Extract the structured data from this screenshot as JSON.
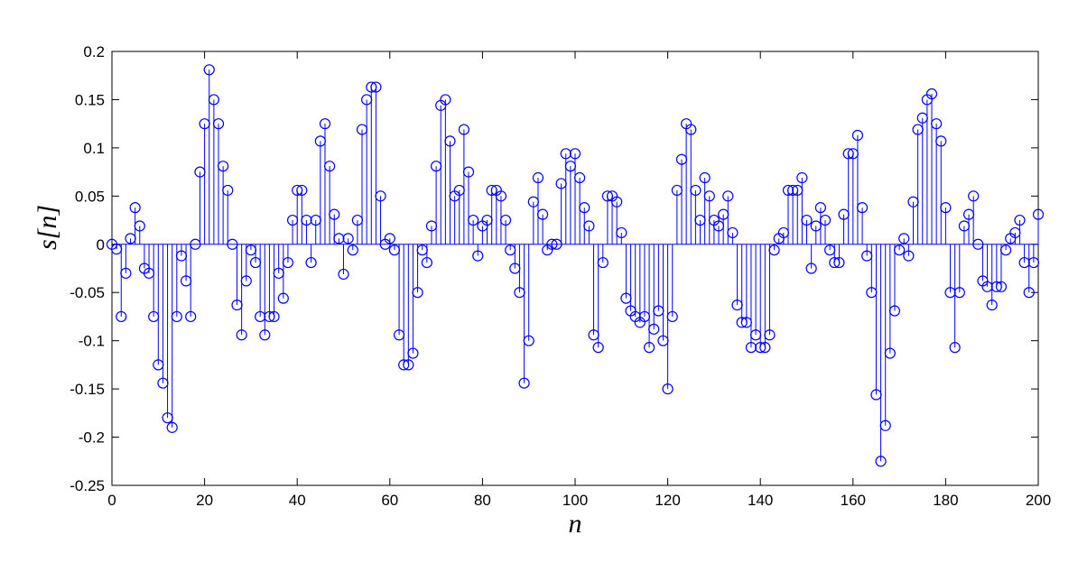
{
  "chart_data": {
    "type": "stem",
    "xlabel": "n",
    "ylabel": "s[n]",
    "color": "#0000ff",
    "xlim": [
      0,
      200
    ],
    "xticks": [
      0,
      20,
      40,
      60,
      80,
      100,
      120,
      140,
      160,
      180,
      200
    ],
    "ylim": [
      -0.25,
      0.2
    ],
    "yticks": [
      0.2,
      0.15,
      0.1,
      0.05,
      0,
      -0.05,
      -0.1,
      -0.15,
      -0.2,
      -0.25
    ],
    "x": [
      0,
      1,
      2,
      3,
      4,
      5,
      6,
      7,
      8,
      9,
      10,
      11,
      12,
      13,
      14,
      15,
      16,
      17,
      18,
      19,
      20,
      21,
      22,
      23,
      24,
      25,
      26,
      27,
      28,
      29,
      30,
      31,
      32,
      33,
      34,
      35,
      36,
      37,
      38,
      39,
      40,
      41,
      42,
      43,
      44,
      45,
      46,
      47,
      48,
      49,
      50,
      51,
      52,
      53,
      54,
      55,
      56,
      57,
      58,
      59,
      60,
      61,
      62,
      63,
      64,
      65,
      66,
      67,
      68,
      69,
      70,
      71,
      72,
      73,
      74,
      75,
      76,
      77,
      78,
      79,
      80,
      81,
      82,
      83,
      84,
      85,
      86,
      87,
      88,
      89,
      90,
      91,
      92,
      93,
      94,
      95,
      96,
      97,
      98,
      99,
      100,
      101,
      102,
      103,
      104,
      105,
      106,
      107,
      108,
      109,
      110,
      111,
      112,
      113,
      114,
      115,
      116,
      117,
      118,
      119,
      120,
      121,
      122,
      123,
      124,
      125,
      126,
      127,
      128,
      129,
      130,
      131,
      132,
      133,
      134,
      135,
      136,
      137,
      138,
      139,
      140,
      141,
      142,
      143,
      144,
      145,
      146,
      147,
      148,
      149,
      150,
      151,
      152,
      153,
      154,
      155,
      156,
      157,
      158,
      159,
      160,
      161,
      162,
      163,
      164,
      165,
      166,
      167,
      168,
      169,
      170,
      171,
      172,
      173,
      174,
      175,
      176,
      177,
      178,
      179,
      180,
      181,
      182,
      183,
      184,
      185,
      186,
      187,
      188,
      189,
      190,
      191,
      192,
      193,
      194,
      195,
      196,
      197,
      198,
      199,
      200
    ],
    "values": [
      0,
      -0.005,
      -0.075,
      -0.03,
      0.006,
      0.038,
      0.019,
      -0.025,
      -0.03,
      -0.075,
      -0.125,
      -0.144,
      -0.18,
      -0.19,
      -0.075,
      -0.012,
      -0.038,
      -0.075,
      0,
      0.075,
      0.125,
      0.181,
      0.15,
      0.125,
      0.081,
      0.056,
      0,
      -0.063,
      -0.094,
      -0.038,
      -0.006,
      -0.019,
      -0.075,
      -0.094,
      -0.075,
      -0.075,
      -0.03,
      -0.056,
      -0.019,
      0.025,
      0.056,
      0.056,
      0.025,
      -0.019,
      0.025,
      0.107,
      0.125,
      0.081,
      0.031,
      0.006,
      -0.031,
      0.006,
      -0.006,
      0.025,
      0.119,
      0.15,
      0.163,
      0.163,
      0.05,
      0,
      0.006,
      -0.006,
      -0.094,
      -0.125,
      -0.125,
      -0.113,
      -0.05,
      -0.006,
      -0.019,
      0.019,
      0.081,
      0.144,
      0.15,
      0.107,
      0.05,
      0.056,
      0.119,
      0.075,
      0.025,
      -0.012,
      0.019,
      0.025,
      0.056,
      0.056,
      0.05,
      0.025,
      -0.006,
      -0.025,
      -0.05,
      -0.144,
      -0.1,
      0.044,
      0.069,
      0.031,
      -0.006,
      0,
      0,
      0.063,
      0.094,
      0.081,
      0.094,
      0.069,
      0.038,
      0.019,
      -0.094,
      -0.107,
      -0.019,
      0.05,
      0.05,
      0.044,
      0.012,
      -0.056,
      -0.069,
      -0.075,
      -0.081,
      -0.075,
      -0.107,
      -0.088,
      -0.069,
      -0.1,
      -0.15,
      -0.075,
      0.056,
      0.088,
      0.125,
      0.119,
      0.056,
      0.025,
      0.069,
      0.05,
      0.025,
      0.019,
      0.031,
      0.05,
      0.012,
      -0.063,
      -0.081,
      -0.081,
      -0.107,
      -0.094,
      -0.107,
      -0.107,
      -0.094,
      -0.006,
      0.006,
      0.012,
      0.056,
      0.056,
      0.056,
      0.069,
      0.025,
      -0.025,
      0.019,
      0.038,
      0.025,
      -0.006,
      -0.019,
      -0.019,
      0.031,
      0.094,
      0.094,
      0.113,
      0.038,
      -0.012,
      -0.05,
      -0.156,
      -0.225,
      -0.188,
      -0.113,
      -0.069,
      -0.006,
      0.006,
      -0.012,
      0.044,
      0.119,
      0.131,
      0.15,
      0.156,
      0.125,
      0.107,
      0.038,
      -0.05,
      -0.107,
      -0.05,
      0.019,
      0.031,
      0.05,
      0,
      -0.038,
      -0.044,
      -0.063,
      -0.044,
      -0.044,
      -0.006,
      0.006,
      0.012,
      0.025,
      -0.019,
      -0.05,
      -0.019,
      0.031
    ]
  }
}
